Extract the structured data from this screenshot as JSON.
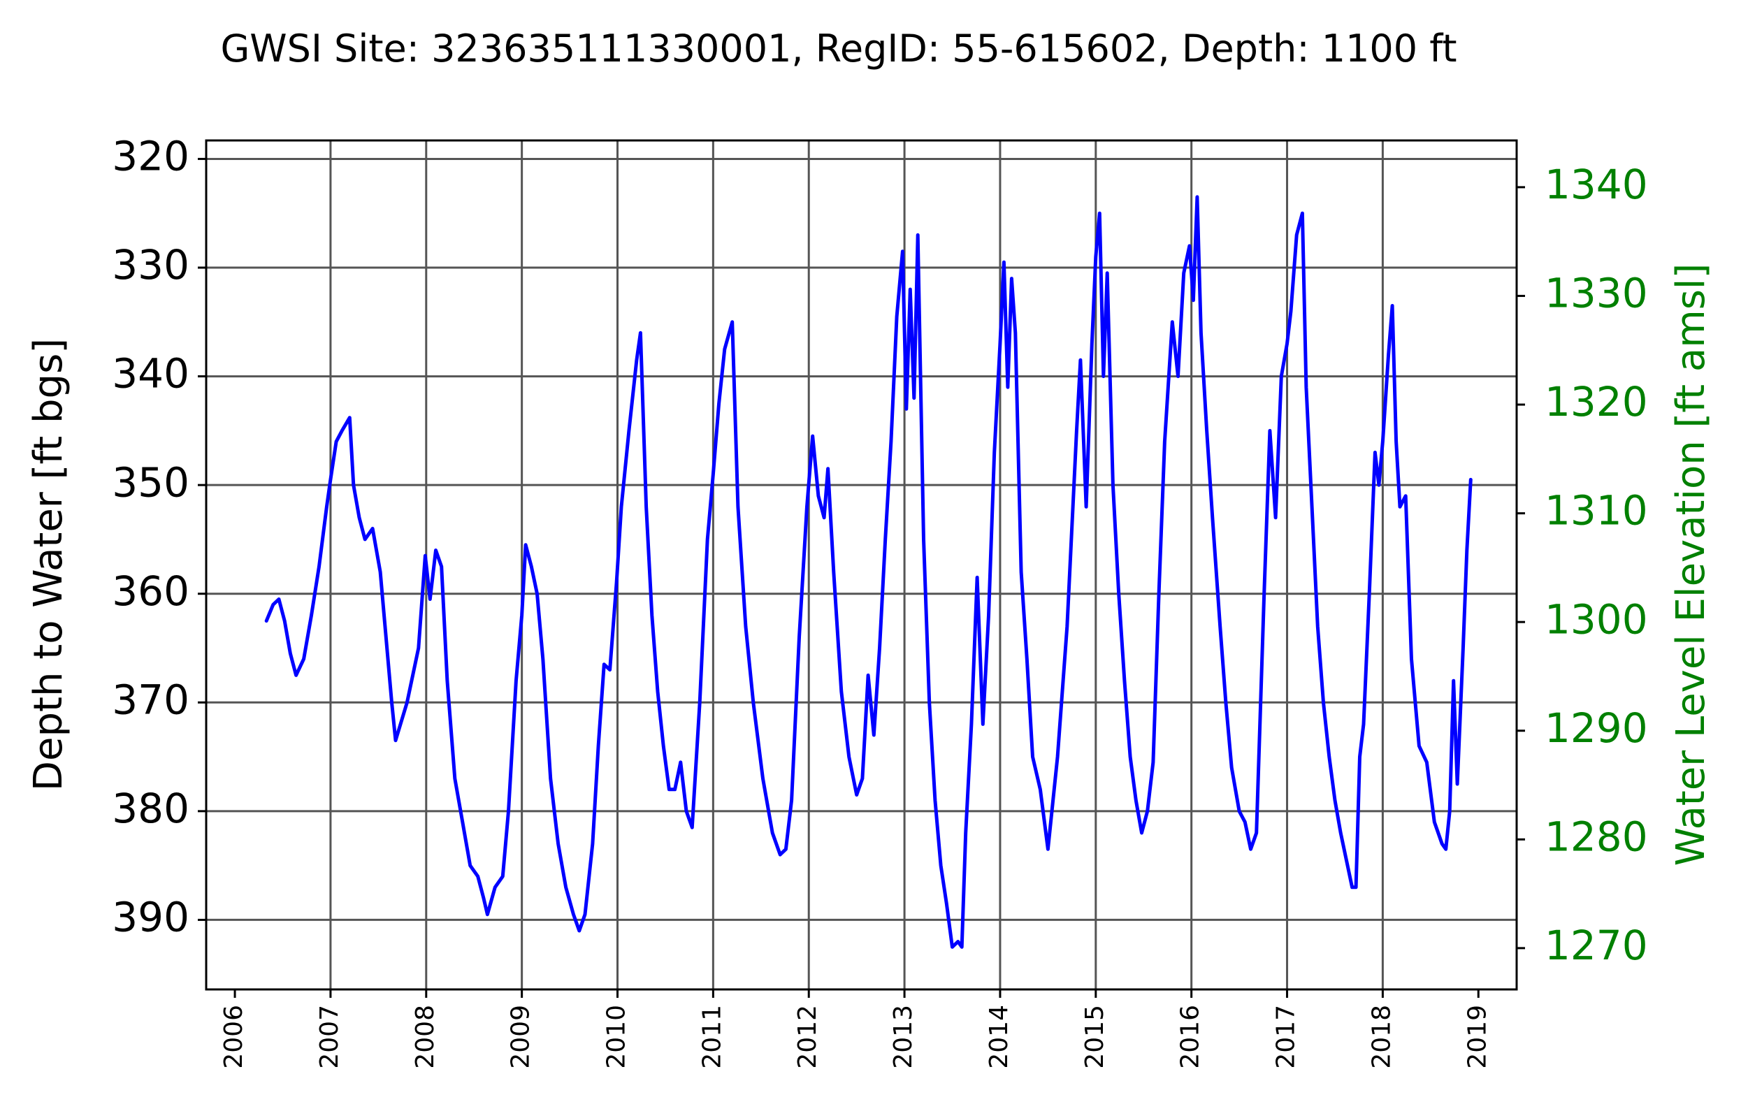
{
  "chart_data": {
    "type": "line",
    "title": "GWSI Site: 323635111330001, RegID: 55-615602, Depth: 1100 ft",
    "ylabel": "Depth to Water [ft bgs]",
    "y2label": "Water Level Elevation [ft amsl]",
    "xlabel": "",
    "ylim": [
      396.4,
      318.3
    ],
    "y2lim": [
      1266.2,
      1344.3
    ],
    "xlim": [
      2005.7,
      2019.4
    ],
    "y_inverted": true,
    "grid": true,
    "colors": {
      "series": "#0000ff",
      "secondary_axis": "#008000",
      "grid": "#555555"
    },
    "x_ticks": [
      "2006",
      "2007",
      "2008",
      "2009",
      "2010",
      "2011",
      "2012",
      "2013",
      "2014",
      "2015",
      "2016",
      "2017",
      "2018",
      "2019"
    ],
    "y_ticks": [
      "320",
      "330",
      "340",
      "350",
      "360",
      "370",
      "380",
      "390"
    ],
    "y2_ticks": [
      "1270",
      "1280",
      "1290",
      "1300",
      "1310",
      "1320",
      "1330",
      "1340"
    ],
    "series": [
      {
        "points": [
          [
            2006.33,
            362.5
          ],
          [
            2006.4,
            361.0
          ],
          [
            2006.46,
            360.5
          ],
          [
            2006.52,
            362.5
          ],
          [
            2006.58,
            365.5
          ],
          [
            2006.64,
            367.5
          ],
          [
            2006.72,
            366.0
          ],
          [
            2006.8,
            362.0
          ],
          [
            2006.88,
            357.5
          ],
          [
            2006.96,
            352.0
          ],
          [
            2007.0,
            349.5
          ],
          [
            2007.06,
            346.0
          ],
          [
            2007.12,
            345.0
          ],
          [
            2007.2,
            343.8
          ],
          [
            2007.24,
            350.0
          ],
          [
            2007.3,
            353.0
          ],
          [
            2007.36,
            355.0
          ],
          [
            2007.44,
            354.0
          ],
          [
            2007.52,
            358.0
          ],
          [
            2007.58,
            364.0
          ],
          [
            2007.64,
            370.0
          ],
          [
            2007.68,
            373.5
          ],
          [
            2007.8,
            370.0
          ],
          [
            2007.92,
            365.0
          ],
          [
            2007.99,
            356.5
          ],
          [
            2008.04,
            360.5
          ],
          [
            2008.1,
            356.0
          ],
          [
            2008.16,
            357.5
          ],
          [
            2008.22,
            368.0
          ],
          [
            2008.3,
            377.0
          ],
          [
            2008.38,
            381.0
          ],
          [
            2008.46,
            385.0
          ],
          [
            2008.54,
            386.0
          ],
          [
            2008.6,
            388.0
          ],
          [
            2008.64,
            389.5
          ],
          [
            2008.72,
            387.0
          ],
          [
            2008.8,
            386.0
          ],
          [
            2008.86,
            380.0
          ],
          [
            2008.94,
            368.0
          ],
          [
            2009.0,
            362.0
          ],
          [
            2009.04,
            355.5
          ],
          [
            2009.1,
            357.5
          ],
          [
            2009.16,
            360.0
          ],
          [
            2009.22,
            366.0
          ],
          [
            2009.3,
            377.0
          ],
          [
            2009.38,
            383.0
          ],
          [
            2009.46,
            387.0
          ],
          [
            2009.54,
            389.5
          ],
          [
            2009.6,
            391.0
          ],
          [
            2009.66,
            389.5
          ],
          [
            2009.74,
            383.0
          ],
          [
            2009.8,
            374.0
          ],
          [
            2009.86,
            366.5
          ],
          [
            2009.92,
            367.0
          ],
          [
            2009.99,
            359.0
          ],
          [
            2010.04,
            352.0
          ],
          [
            2010.12,
            345.0
          ],
          [
            2010.2,
            338.5
          ],
          [
            2010.24,
            336.0
          ],
          [
            2010.3,
            352.0
          ],
          [
            2010.36,
            362.0
          ],
          [
            2010.42,
            369.0
          ],
          [
            2010.48,
            374.0
          ],
          [
            2010.54,
            378.0
          ],
          [
            2010.6,
            378.0
          ],
          [
            2010.66,
            375.5
          ],
          [
            2010.72,
            380.0
          ],
          [
            2010.78,
            381.5
          ],
          [
            2010.86,
            370.0
          ],
          [
            2010.94,
            355.0
          ],
          [
            2011.0,
            349.0
          ],
          [
            2011.06,
            342.5
          ],
          [
            2011.12,
            337.5
          ],
          [
            2011.2,
            335.0
          ],
          [
            2011.26,
            352.0
          ],
          [
            2011.34,
            363.0
          ],
          [
            2011.42,
            370.0
          ],
          [
            2011.52,
            377.0
          ],
          [
            2011.62,
            382.0
          ],
          [
            2011.7,
            384.0
          ],
          [
            2011.76,
            383.5
          ],
          [
            2011.82,
            379.0
          ],
          [
            2011.9,
            364.0
          ],
          [
            2011.98,
            352.0
          ],
          [
            2012.04,
            345.5
          ],
          [
            2012.1,
            351.0
          ],
          [
            2012.16,
            353.0
          ],
          [
            2012.2,
            348.5
          ],
          [
            2012.26,
            358.0
          ],
          [
            2012.34,
            369.0
          ],
          [
            2012.42,
            375.0
          ],
          [
            2012.5,
            378.5
          ],
          [
            2012.56,
            377.0
          ],
          [
            2012.62,
            367.5
          ],
          [
            2012.68,
            373.0
          ],
          [
            2012.74,
            365.0
          ],
          [
            2012.8,
            355.0
          ],
          [
            2012.86,
            346.0
          ],
          [
            2012.92,
            334.5
          ],
          [
            2012.98,
            328.5
          ],
          [
            2013.02,
            343.0
          ],
          [
            2013.06,
            332.0
          ],
          [
            2013.1,
            342.0
          ],
          [
            2013.14,
            327.0
          ],
          [
            2013.2,
            355.0
          ],
          [
            2013.26,
            370.0
          ],
          [
            2013.32,
            379.0
          ],
          [
            2013.38,
            385.0
          ],
          [
            2013.44,
            388.5
          ],
          [
            2013.5,
            392.5
          ],
          [
            2013.56,
            392.0
          ],
          [
            2013.6,
            392.5
          ],
          [
            2013.64,
            382.0
          ],
          [
            2013.7,
            372.0
          ],
          [
            2013.76,
            358.5
          ],
          [
            2013.82,
            372.0
          ],
          [
            2013.88,
            362.0
          ],
          [
            2013.94,
            347.0
          ],
          [
            2014.0,
            337.0
          ],
          [
            2014.04,
            329.5
          ],
          [
            2014.08,
            341.0
          ],
          [
            2014.12,
            331.0
          ],
          [
            2014.16,
            336.0
          ],
          [
            2014.22,
            358.0
          ],
          [
            2014.28,
            366.0
          ],
          [
            2014.34,
            375.0
          ],
          [
            2014.42,
            378.0
          ],
          [
            2014.5,
            383.5
          ],
          [
            2014.6,
            375.0
          ],
          [
            2014.7,
            363.0
          ],
          [
            2014.8,
            345.0
          ],
          [
            2014.84,
            338.5
          ],
          [
            2014.9,
            352.0
          ],
          [
            2014.96,
            337.0
          ],
          [
            2015.0,
            329.0
          ],
          [
            2015.04,
            325.0
          ],
          [
            2015.08,
            340.0
          ],
          [
            2015.12,
            330.5
          ],
          [
            2015.18,
            350.0
          ],
          [
            2015.24,
            360.0
          ],
          [
            2015.3,
            368.0
          ],
          [
            2015.36,
            375.0
          ],
          [
            2015.42,
            379.0
          ],
          [
            2015.48,
            382.0
          ],
          [
            2015.54,
            380.0
          ],
          [
            2015.6,
            375.5
          ],
          [
            2015.66,
            360.0
          ],
          [
            2015.72,
            346.0
          ],
          [
            2015.8,
            335.0
          ],
          [
            2015.86,
            340.0
          ],
          [
            2015.92,
            330.5
          ],
          [
            2015.98,
            328.0
          ],
          [
            2016.02,
            333.0
          ],
          [
            2016.06,
            323.5
          ],
          [
            2016.1,
            336.0
          ],
          [
            2016.16,
            345.0
          ],
          [
            2016.22,
            353.0
          ],
          [
            2016.3,
            363.0
          ],
          [
            2016.36,
            370.0
          ],
          [
            2016.42,
            376.0
          ],
          [
            2016.5,
            380.0
          ],
          [
            2016.56,
            381.0
          ],
          [
            2016.62,
            383.5
          ],
          [
            2016.68,
            382.0
          ],
          [
            2016.76,
            360.0
          ],
          [
            2016.82,
            345.0
          ],
          [
            2016.88,
            353.0
          ],
          [
            2016.94,
            340.0
          ],
          [
            2017.0,
            337.0
          ],
          [
            2017.04,
            334.0
          ],
          [
            2017.1,
            327.0
          ],
          [
            2017.16,
            325.0
          ],
          [
            2017.2,
            341.0
          ],
          [
            2017.26,
            352.0
          ],
          [
            2017.32,
            363.0
          ],
          [
            2017.38,
            370.0
          ],
          [
            2017.44,
            375.0
          ],
          [
            2017.5,
            379.0
          ],
          [
            2017.56,
            382.0
          ],
          [
            2017.62,
            384.5
          ],
          [
            2017.68,
            387.0
          ],
          [
            2017.72,
            387.0
          ],
          [
            2017.76,
            375.0
          ],
          [
            2017.8,
            372.0
          ],
          [
            2017.86,
            360.0
          ],
          [
            2017.92,
            347.0
          ],
          [
            2017.96,
            350.0
          ],
          [
            2018.0,
            346.0
          ],
          [
            2018.06,
            338.0
          ],
          [
            2018.1,
            333.5
          ],
          [
            2018.14,
            346.0
          ],
          [
            2018.18,
            352.0
          ],
          [
            2018.24,
            351.0
          ],
          [
            2018.3,
            366.0
          ],
          [
            2018.38,
            374.0
          ],
          [
            2018.46,
            375.5
          ],
          [
            2018.54,
            381.0
          ],
          [
            2018.62,
            383.0
          ],
          [
            2018.66,
            383.5
          ],
          [
            2018.7,
            380.0
          ],
          [
            2018.74,
            368.0
          ],
          [
            2018.78,
            377.5
          ],
          [
            2018.84,
            365.0
          ],
          [
            2018.88,
            356.0
          ],
          [
            2018.92,
            349.5
          ]
        ]
      }
    ]
  }
}
